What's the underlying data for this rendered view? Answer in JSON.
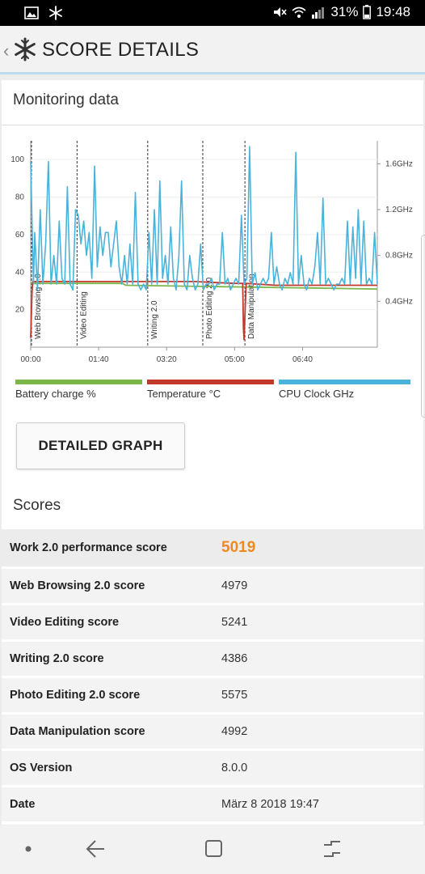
{
  "status_bar": {
    "battery_percent": "31%",
    "time": "19:48",
    "icons": [
      "gallery-icon",
      "snowflake-icon",
      "mute-icon",
      "wifi-icon",
      "signal-icon",
      "battery-icon"
    ]
  },
  "app_bar": {
    "title": "SCORE DETAILS",
    "back_icon": "chevron-left-icon",
    "logo_icon": "snowflake-logo-icon"
  },
  "monitoring": {
    "title": "Monitoring data",
    "button_label": "DETAILED GRAPH",
    "legend": [
      {
        "name": "Battery charge %",
        "color": "#7ab648"
      },
      {
        "name": "Temperature °C",
        "color": "#c0392b"
      },
      {
        "name": "CPU Clock GHz",
        "color": "#4ab3db"
      }
    ]
  },
  "chart_data": {
    "type": "line",
    "x_tick_labels": [
      "00:00",
      "01:40",
      "03:20",
      "05:00",
      "06:40"
    ],
    "y_left_ticks": [
      "20",
      "40",
      "60",
      "80",
      "100"
    ],
    "y_right_ticks": [
      "0.4GHz",
      "0.8GHz",
      "1.2GHz",
      "1.6GHz"
    ],
    "ylim_left": [
      0,
      110
    ],
    "ylim_right_ghz": [
      0,
      1.8
    ],
    "xlim_seconds": [
      0,
      510
    ],
    "phases": [
      {
        "label": "Web Browsing 2.0",
        "start_s": 0
      },
      {
        "label": "Video Editing",
        "start_s": 67
      },
      {
        "label": "Writing 2.0",
        "start_s": 171
      },
      {
        "label": "Photo Editing 2.0",
        "start_s": 252
      },
      {
        "label": "Data Manipulation",
        "start_s": 314
      }
    ],
    "series": [
      {
        "name": "Battery charge %",
        "color": "#7ab648",
        "x": [
          0,
          135,
          140,
          510
        ],
        "y": [
          34,
          34,
          33,
          31
        ]
      },
      {
        "name": "Temperature °C",
        "color": "#c0392b",
        "x": [
          0,
          2,
          3,
          60,
          120,
          180,
          240,
          300,
          312,
          313,
          314,
          316,
          317,
          360,
          420,
          510
        ],
        "y": [
          5,
          30,
          35,
          35,
          35,
          35,
          35,
          34,
          34,
          10,
          4,
          25,
          34,
          33,
          33,
          33
        ]
      },
      {
        "name": "CPU Clock GHz",
        "color": "#4ab3db",
        "x": [
          0,
          4,
          6,
          10,
          14,
          18,
          22,
          26,
          30,
          34,
          38,
          42,
          46,
          50,
          54,
          58,
          62,
          66,
          70,
          74,
          78,
          82,
          86,
          90,
          94,
          98,
          102,
          106,
          110,
          114,
          118,
          122,
          126,
          130,
          134,
          138,
          142,
          146,
          150,
          154,
          158,
          162,
          166,
          170,
          174,
          178,
          182,
          186,
          190,
          194,
          198,
          202,
          206,
          210,
          214,
          218,
          222,
          226,
          230,
          234,
          238,
          242,
          246,
          250,
          254,
          258,
          262,
          266,
          270,
          274,
          278,
          282,
          286,
          290,
          294,
          298,
          302,
          306,
          310,
          314,
          318,
          322,
          326,
          330,
          334,
          338,
          342,
          346,
          350,
          354,
          358,
          362,
          366,
          370,
          374,
          378,
          382,
          386,
          390,
          394,
          398,
          402,
          406,
          410,
          414,
          418,
          422,
          426,
          430,
          434,
          438,
          442,
          446,
          450,
          454,
          458,
          462,
          466,
          470,
          474,
          478,
          482,
          486,
          490,
          494,
          498,
          502,
          506,
          510
        ],
        "y": [
          1.62,
          0.55,
          1.0,
          0.5,
          1.2,
          0.55,
          0.9,
          1.62,
          0.55,
          0.8,
          0.55,
          1.1,
          0.6,
          0.55,
          1.4,
          0.55,
          0.5,
          1.2,
          1.15,
          0.9,
          1.1,
          0.8,
          1.0,
          0.6,
          1.58,
          0.7,
          1.05,
          0.8,
          1.0,
          1.0,
          0.7,
          0.9,
          1.1,
          0.7,
          0.55,
          0.8,
          0.55,
          0.9,
          0.55,
          1.35,
          0.55,
          0.5,
          0.55,
          0.5,
          1.0,
          0.55,
          1.2,
          0.55,
          1.45,
          0.6,
          0.8,
          0.55,
          1.05,
          0.6,
          0.5,
          0.8,
          1.45,
          0.55,
          0.5,
          0.8,
          0.6,
          0.5,
          0.55,
          0.9,
          0.5,
          0.55,
          0.55,
          0.6,
          0.5,
          0.55,
          0.55,
          1.0,
          0.55,
          0.6,
          0.5,
          0.55,
          0.6,
          0.55,
          1.15,
          0.55,
          0.6,
          1.75,
          0.55,
          0.65,
          0.5,
          0.55,
          0.6,
          0.55,
          0.6,
          1.0,
          0.55,
          0.7,
          0.55,
          0.5,
          0.6,
          0.55,
          0.65,
          0.55,
          1.7,
          0.55,
          0.8,
          0.55,
          0.5,
          0.6,
          0.55,
          0.7,
          1.0,
          0.55,
          1.3,
          0.55,
          0.6,
          0.55,
          0.5,
          0.55,
          0.55,
          0.6,
          0.55,
          1.1,
          0.55,
          1.05,
          0.6,
          1.2,
          0.55,
          1.1,
          0.55,
          0.6,
          0.55,
          1.0,
          0.55
        ]
      }
    ]
  },
  "scores": {
    "title": "Scores",
    "rows": [
      {
        "label": "Work 2.0 performance score",
        "value": "5019"
      },
      {
        "label": "Web Browsing 2.0 score",
        "value": "4979"
      },
      {
        "label": "Video Editing score",
        "value": "5241"
      },
      {
        "label": "Writing 2.0 score",
        "value": "4386"
      },
      {
        "label": "Photo Editing 2.0 score",
        "value": "5575"
      },
      {
        "label": "Data Manipulation score",
        "value": "4992"
      },
      {
        "label": "OS Version",
        "value": "8.0.0"
      },
      {
        "label": "Date",
        "value": "März 8 2018 19:47"
      }
    ]
  },
  "nav_bar": {
    "icons": [
      "dot-icon",
      "back-arrow-icon",
      "home-square-icon",
      "recents-icon"
    ]
  }
}
